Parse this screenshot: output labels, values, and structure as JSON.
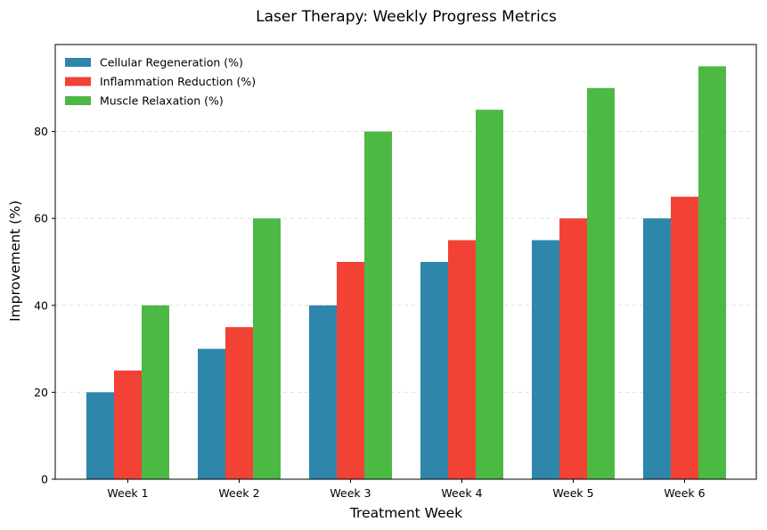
{
  "chart_data": {
    "type": "bar",
    "title": "Laser Therapy: Weekly Progress Metrics",
    "xlabel": "Treatment Week",
    "ylabel": "Improvement (%)",
    "categories": [
      "Week 1",
      "Week 2",
      "Week 3",
      "Week 4",
      "Week 5",
      "Week 6"
    ],
    "ylim": [
      0,
      100
    ],
    "yticks": [
      0,
      20,
      40,
      60,
      80
    ],
    "grid": "y-dashed",
    "legend_position": "top-left",
    "series": [
      {
        "name": "Cellular Regeneration (%)",
        "color": "#2E86AB",
        "values": [
          20,
          30,
          40,
          50,
          55,
          60
        ]
      },
      {
        "name": "Inflammation Reduction (%)",
        "color": "#F24236",
        "values": [
          25,
          35,
          50,
          55,
          60,
          65
        ]
      },
      {
        "name": "Muscle Relaxation (%)",
        "color": "#4CB944",
        "values": [
          40,
          60,
          80,
          85,
          90,
          95
        ]
      }
    ]
  }
}
